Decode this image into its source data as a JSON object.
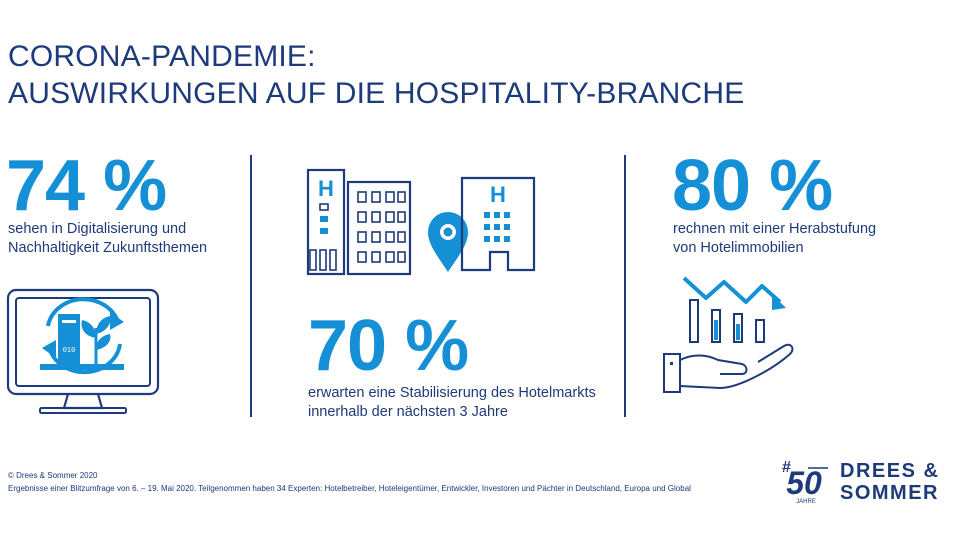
{
  "title": {
    "line1": "CORONA-PANDEMIE:",
    "line2": "AUSWIRKUNGEN AUF DIE HOSPITALITY-BRANCHE"
  },
  "stats": [
    {
      "value": "74 %",
      "desc_line1": "sehen in Digitalisierung und",
      "desc_line2": "Nachhaltigkeit Zukunftsthemen"
    },
    {
      "value": "70 %",
      "desc_line1": "erwarten eine Stabilisierung des Hotelmarkts",
      "desc_line2": "innerhalb der nächsten 3 Jahre"
    },
    {
      "value": "80 %",
      "desc_line1": "rechnen mit einer Herabstufung",
      "desc_line2": "von Hotelimmobilien"
    }
  ],
  "icons": {
    "monitor": "monitor-sustainability-icon",
    "hotels": "hotel-buildings-location-icon",
    "hand": "hand-declining-chart-icon",
    "hotel_letter": "H",
    "binary": "010"
  },
  "footer": {
    "copyright": "© Drees & Sommer 2020",
    "note": "Ergebnisse einer Blitzumfrage von 6. – 19. Mai 2020. Teilgenommen haben 34 Experten: Hotelbetreiber, Hoteleigentümer, Entwickler, Investoren und Pächter in Deutschland, Europa und Global"
  },
  "logo": {
    "hash": "#",
    "number": "50",
    "jahre": "JAHRE",
    "line1": "DREES &",
    "line2": "SOMMER"
  },
  "colors": {
    "primary_dark": "#1d3a7a",
    "accent_blue": "#1590d6"
  }
}
